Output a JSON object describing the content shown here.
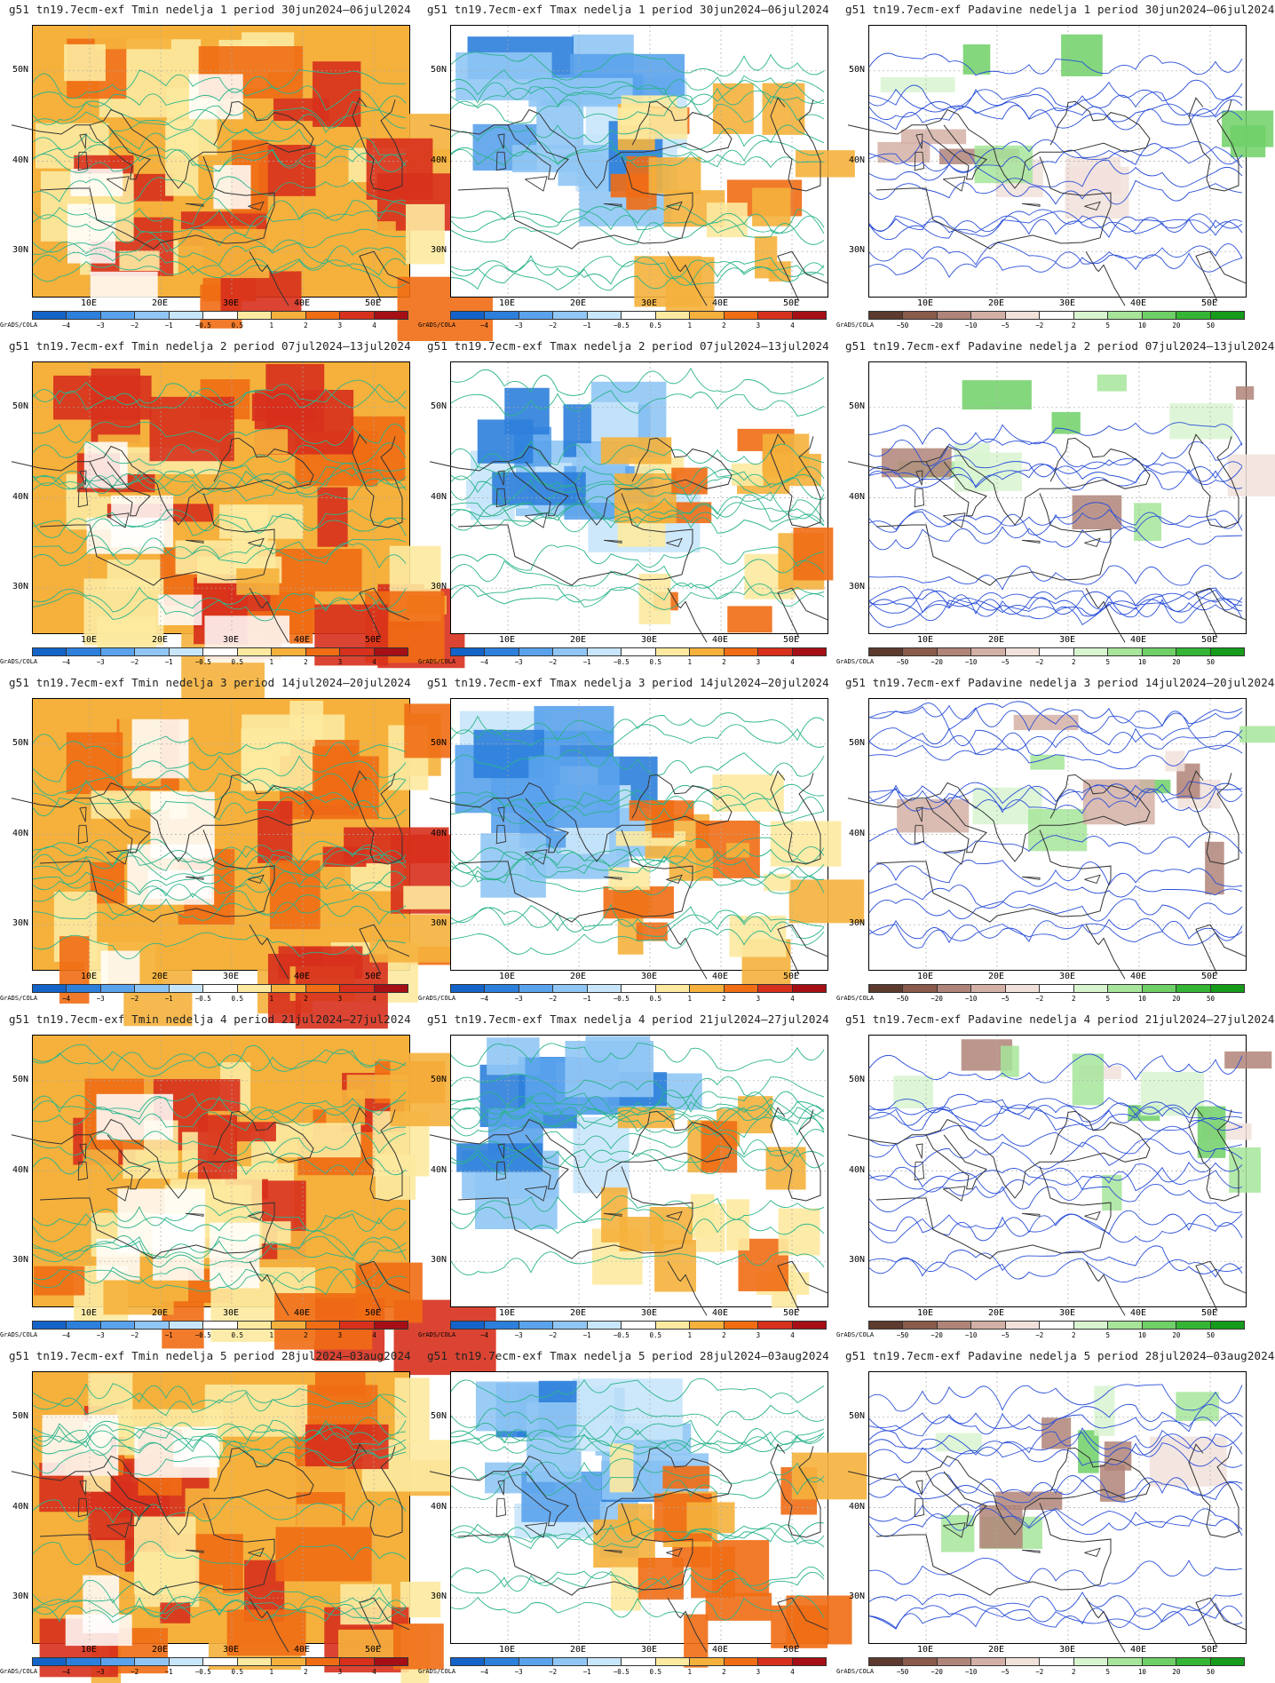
{
  "rows": [
    {
      "week": "1",
      "period": "30jun2024–06jul2024"
    },
    {
      "week": "2",
      "period": "07jul2024–13jul2024"
    },
    {
      "week": "3",
      "period": "14jul2024–20jul2024"
    },
    {
      "week": "4",
      "period": "21jul2024–27jul2024"
    },
    {
      "week": "5",
      "period": "28jul2024–03aug2024"
    }
  ],
  "panels": [
    {
      "title": "g51 tn19.7ecm-exf Tmin nedelja 1 period 30jun2024–06jul2024",
      "var": "tmin"
    },
    {
      "title": "g51 tn19.7ecm-exf Tmax nedelja 1 period 30jun2024–06jul2024",
      "var": "tmax"
    },
    {
      "title": "g51 tn19.7ecm-exf Padavine nedelja 1 period 30jun2024–06jul2024",
      "var": "prec"
    },
    {
      "title": "g51 tn19.7ecm-exf Tmin nedelja 2 period 07jul2024–13jul2024",
      "var": "tmin"
    },
    {
      "title": "g51 tn19.7ecm-exf Tmax nedelja 2 period 07jul2024–13jul2024",
      "var": "tmax"
    },
    {
      "title": "g51 tn19.7ecm-exf Padavine nedelja 2 period 07jul2024–13jul2024",
      "var": "prec"
    },
    {
      "title": "g51 tn19.7ecm-exf Tmin nedelja 3 period 14jul2024–20jul2024",
      "var": "tmin"
    },
    {
      "title": "g51 tn19.7ecm-exf Tmax nedelja 3 period 14jul2024–20jul2024",
      "var": "tmax"
    },
    {
      "title": "g51 tn19.7ecm-exf Padavine nedelja 3 period 14jul2024–20jul2024",
      "var": "prec"
    },
    {
      "title": "g51 tn19.7ecm-exf Tmin nedelja 4 period 21jul2024–27jul2024",
      "var": "tmin"
    },
    {
      "title": "g51 tn19.7ecm-exf Tmax nedelja 4 period 21jul2024–27jul2024",
      "var": "tmax"
    },
    {
      "title": "g51 tn19.7ecm-exf Padavine nedelja 4 period 21jul2024–27jul2024",
      "var": "prec"
    },
    {
      "title": "g51 tn19.7ecm-exf Tmin nedelja 5 period 28jul2024–03aug2024",
      "var": "tmin"
    },
    {
      "title": "g51 tn19.7ecm-exf Tmax nedelja 5 period 28jul2024–03aug2024",
      "var": "tmax"
    },
    {
      "title": "g51 tn19.7ecm-exf Padavine nedelja 5 period 28jul2024–03aug2024",
      "var": "prec"
    }
  ],
  "axes": {
    "lat_labels": [
      "50N",
      "40N",
      "30N"
    ],
    "lon_labels": [
      "10E",
      "20E",
      "30E",
      "40E",
      "50E"
    ]
  },
  "colorbars": {
    "temp": {
      "labels": [
        "−4",
        "−3",
        "−2",
        "−1",
        "−0.5",
        "0.5",
        "1",
        "2",
        "3",
        "4"
      ],
      "colors": [
        "#1463c8",
        "#2d7fdc",
        "#5aa2ec",
        "#90c6f5",
        "#c8e6fb",
        "#ffffff",
        "#fdeaa0",
        "#f5b13c",
        "#f06d14",
        "#d7301c",
        "#a50f15"
      ]
    },
    "prec": {
      "labels": [
        "−50",
        "−20",
        "−10",
        "−5",
        "−2",
        "2",
        "5",
        "10",
        "20",
        "50"
      ],
      "colors": [
        "#5c3a2e",
        "#8a5a4a",
        "#b08478",
        "#d3b0a6",
        "#f1e1da",
        "#ffffff",
        "#d8f5d0",
        "#a6e59a",
        "#6ed066",
        "#35b535",
        "#169b1b"
      ]
    },
    "credit": "GrADS/COLA"
  }
}
